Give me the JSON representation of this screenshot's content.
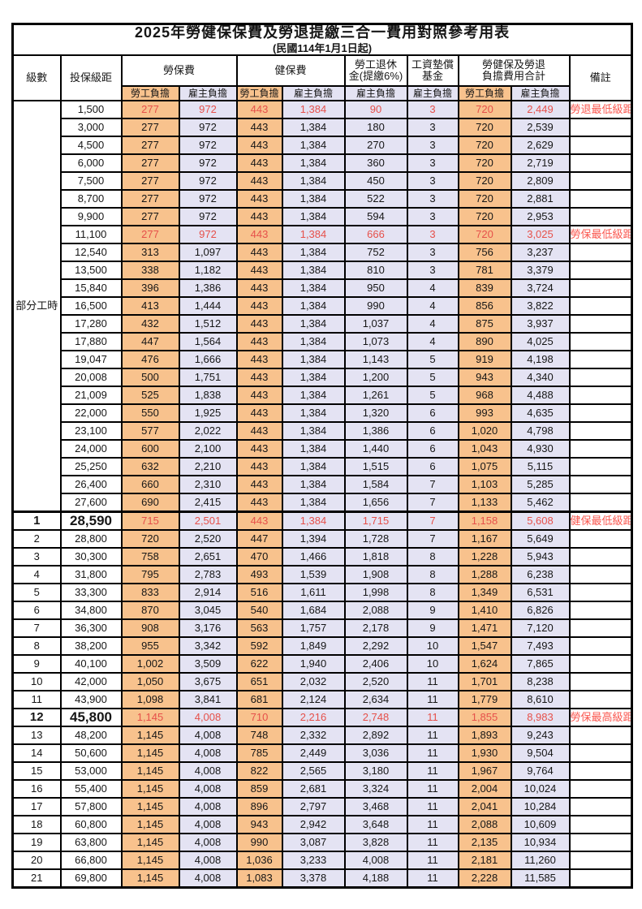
{
  "title": "2025年勞健保保費及勞退提繳三合一費用對照參考用表",
  "subtitle": "(民國114年1月1日起)",
  "header": {
    "level": "級數",
    "bracket": "投保級距",
    "labor_ins": "勞保費",
    "health_ins": "健保費",
    "pension_line1": "勞工退休",
    "pension_line2": "金(提繳6%)",
    "wage_fund_line1": "工資墊償",
    "wage_fund_line2": "基金",
    "total_line1": "勞健保及勞退",
    "total_line2": "負擔費用合計",
    "remarks": "備註",
    "worker": "勞工負擔",
    "employer": "雇主負擔"
  },
  "part_time_label": "部分工時",
  "colors": {
    "worker_bg": "#F8C28D",
    "employer_bg": "#E4E3F3",
    "highlight_red": "#E6504A",
    "note_red": "#FA564E"
  },
  "rows": [
    {
      "level": "",
      "bracket": "1,500",
      "values": [
        "277",
        "972",
        "443",
        "1,384",
        "90",
        "3",
        "720",
        "2,449"
      ],
      "note": "勞退最低級距",
      "red": true,
      "emphasis": false
    },
    {
      "level": "",
      "bracket": "3,000",
      "values": [
        "277",
        "972",
        "443",
        "1,384",
        "180",
        "3",
        "720",
        "2,539"
      ],
      "note": "",
      "red": false,
      "emphasis": false
    },
    {
      "level": "",
      "bracket": "4,500",
      "values": [
        "277",
        "972",
        "443",
        "1,384",
        "270",
        "3",
        "720",
        "2,629"
      ],
      "note": "",
      "red": false,
      "emphasis": false
    },
    {
      "level": "",
      "bracket": "6,000",
      "values": [
        "277",
        "972",
        "443",
        "1,384",
        "360",
        "3",
        "720",
        "2,719"
      ],
      "note": "",
      "red": false,
      "emphasis": false
    },
    {
      "level": "",
      "bracket": "7,500",
      "values": [
        "277",
        "972",
        "443",
        "1,384",
        "450",
        "3",
        "720",
        "2,809"
      ],
      "note": "",
      "red": false,
      "emphasis": false
    },
    {
      "level": "",
      "bracket": "8,700",
      "values": [
        "277",
        "972",
        "443",
        "1,384",
        "522",
        "3",
        "720",
        "2,881"
      ],
      "note": "",
      "red": false,
      "emphasis": false
    },
    {
      "level": "",
      "bracket": "9,900",
      "values": [
        "277",
        "972",
        "443",
        "1,384",
        "594",
        "3",
        "720",
        "2,953"
      ],
      "note": "",
      "red": false,
      "emphasis": false
    },
    {
      "level": "",
      "bracket": "11,100",
      "values": [
        "277",
        "972",
        "443",
        "1,384",
        "666",
        "3",
        "720",
        "3,025"
      ],
      "note": "勞保最低級距",
      "red": true,
      "emphasis": false
    },
    {
      "level": "",
      "bracket": "12,540",
      "values": [
        "313",
        "1,097",
        "443",
        "1,384",
        "752",
        "3",
        "756",
        "3,237"
      ],
      "note": "",
      "red": false,
      "emphasis": false
    },
    {
      "level": "",
      "bracket": "13,500",
      "values": [
        "338",
        "1,182",
        "443",
        "1,384",
        "810",
        "3",
        "781",
        "3,379"
      ],
      "note": "",
      "red": false,
      "emphasis": false
    },
    {
      "level": "",
      "bracket": "15,840",
      "values": [
        "396",
        "1,386",
        "443",
        "1,384",
        "950",
        "4",
        "839",
        "3,724"
      ],
      "note": "",
      "red": false,
      "emphasis": false
    },
    {
      "level": "",
      "bracket": "16,500",
      "values": [
        "413",
        "1,444",
        "443",
        "1,384",
        "990",
        "4",
        "856",
        "3,822"
      ],
      "note": "",
      "red": false,
      "emphasis": false
    },
    {
      "level": "",
      "bracket": "17,280",
      "values": [
        "432",
        "1,512",
        "443",
        "1,384",
        "1,037",
        "4",
        "875",
        "3,937"
      ],
      "note": "",
      "red": false,
      "emphasis": false
    },
    {
      "level": "",
      "bracket": "17,880",
      "values": [
        "447",
        "1,564",
        "443",
        "1,384",
        "1,073",
        "4",
        "890",
        "4,025"
      ],
      "note": "",
      "red": false,
      "emphasis": false
    },
    {
      "level": "",
      "bracket": "19,047",
      "values": [
        "476",
        "1,666",
        "443",
        "1,384",
        "1,143",
        "5",
        "919",
        "4,198"
      ],
      "note": "",
      "red": false,
      "emphasis": false
    },
    {
      "level": "",
      "bracket": "20,008",
      "values": [
        "500",
        "1,751",
        "443",
        "1,384",
        "1,200",
        "5",
        "943",
        "4,340"
      ],
      "note": "",
      "red": false,
      "emphasis": false
    },
    {
      "level": "",
      "bracket": "21,009",
      "values": [
        "525",
        "1,838",
        "443",
        "1,384",
        "1,261",
        "5",
        "968",
        "4,488"
      ],
      "note": "",
      "red": false,
      "emphasis": false
    },
    {
      "level": "",
      "bracket": "22,000",
      "values": [
        "550",
        "1,925",
        "443",
        "1,384",
        "1,320",
        "6",
        "993",
        "4,635"
      ],
      "note": "",
      "red": false,
      "emphasis": false
    },
    {
      "level": "",
      "bracket": "23,100",
      "values": [
        "577",
        "2,022",
        "443",
        "1,384",
        "1,386",
        "6",
        "1,020",
        "4,798"
      ],
      "note": "",
      "red": false,
      "emphasis": false
    },
    {
      "level": "",
      "bracket": "24,000",
      "values": [
        "600",
        "2,100",
        "443",
        "1,384",
        "1,440",
        "6",
        "1,043",
        "4,930"
      ],
      "note": "",
      "red": false,
      "emphasis": false
    },
    {
      "level": "",
      "bracket": "25,250",
      "values": [
        "632",
        "2,210",
        "443",
        "1,384",
        "1,515",
        "6",
        "1,075",
        "5,115"
      ],
      "note": "",
      "red": false,
      "emphasis": false
    },
    {
      "level": "",
      "bracket": "26,400",
      "values": [
        "660",
        "2,310",
        "443",
        "1,384",
        "1,584",
        "7",
        "1,103",
        "5,285"
      ],
      "note": "",
      "red": false,
      "emphasis": false
    },
    {
      "level": "",
      "bracket": "27,600",
      "values": [
        "690",
        "2,415",
        "443",
        "1,384",
        "1,656",
        "7",
        "1,133",
        "5,462"
      ],
      "note": "",
      "red": false,
      "emphasis": false
    },
    {
      "level": "1",
      "bracket": "28,590",
      "values": [
        "715",
        "2,501",
        "443",
        "1,384",
        "1,715",
        "7",
        "1,158",
        "5,608"
      ],
      "note": "健保最低級距",
      "red": true,
      "emphasis": true
    },
    {
      "level": "2",
      "bracket": "28,800",
      "values": [
        "720",
        "2,520",
        "447",
        "1,394",
        "1,728",
        "7",
        "1,167",
        "5,649"
      ],
      "note": "",
      "red": false,
      "emphasis": false
    },
    {
      "level": "3",
      "bracket": "30,300",
      "values": [
        "758",
        "2,651",
        "470",
        "1,466",
        "1,818",
        "8",
        "1,228",
        "5,943"
      ],
      "note": "",
      "red": false,
      "emphasis": false
    },
    {
      "level": "4",
      "bracket": "31,800",
      "values": [
        "795",
        "2,783",
        "493",
        "1,539",
        "1,908",
        "8",
        "1,288",
        "6,238"
      ],
      "note": "",
      "red": false,
      "emphasis": false
    },
    {
      "level": "5",
      "bracket": "33,300",
      "values": [
        "833",
        "2,914",
        "516",
        "1,611",
        "1,998",
        "8",
        "1,349",
        "6,531"
      ],
      "note": "",
      "red": false,
      "emphasis": false
    },
    {
      "level": "6",
      "bracket": "34,800",
      "values": [
        "870",
        "3,045",
        "540",
        "1,684",
        "2,088",
        "9",
        "1,410",
        "6,826"
      ],
      "note": "",
      "red": false,
      "emphasis": false
    },
    {
      "level": "7",
      "bracket": "36,300",
      "values": [
        "908",
        "3,176",
        "563",
        "1,757",
        "2,178",
        "9",
        "1,471",
        "7,120"
      ],
      "note": "",
      "red": false,
      "emphasis": false
    },
    {
      "level": "8",
      "bracket": "38,200",
      "values": [
        "955",
        "3,342",
        "592",
        "1,849",
        "2,292",
        "10",
        "1,547",
        "7,493"
      ],
      "note": "",
      "red": false,
      "emphasis": false
    },
    {
      "level": "9",
      "bracket": "40,100",
      "values": [
        "1,002",
        "3,509",
        "622",
        "1,940",
        "2,406",
        "10",
        "1,624",
        "7,865"
      ],
      "note": "",
      "red": false,
      "emphasis": false
    },
    {
      "level": "10",
      "bracket": "42,000",
      "values": [
        "1,050",
        "3,675",
        "651",
        "2,032",
        "2,520",
        "11",
        "1,701",
        "8,238"
      ],
      "note": "",
      "red": false,
      "emphasis": false
    },
    {
      "level": "11",
      "bracket": "43,900",
      "values": [
        "1,098",
        "3,841",
        "681",
        "2,124",
        "2,634",
        "11",
        "1,779",
        "8,610"
      ],
      "note": "",
      "red": false,
      "emphasis": false
    },
    {
      "level": "12",
      "bracket": "45,800",
      "values": [
        "1,145",
        "4,008",
        "710",
        "2,216",
        "2,748",
        "11",
        "1,855",
        "8,983"
      ],
      "note": "勞保最高級距",
      "red": true,
      "emphasis": true
    },
    {
      "level": "13",
      "bracket": "48,200",
      "values": [
        "1,145",
        "4,008",
        "748",
        "2,332",
        "2,892",
        "11",
        "1,893",
        "9,243"
      ],
      "note": "",
      "red": false,
      "emphasis": false
    },
    {
      "level": "14",
      "bracket": "50,600",
      "values": [
        "1,145",
        "4,008",
        "785",
        "2,449",
        "3,036",
        "11",
        "1,930",
        "9,504"
      ],
      "note": "",
      "red": false,
      "emphasis": false
    },
    {
      "level": "15",
      "bracket": "53,000",
      "values": [
        "1,145",
        "4,008",
        "822",
        "2,565",
        "3,180",
        "11",
        "1,967",
        "9,764"
      ],
      "note": "",
      "red": false,
      "emphasis": false
    },
    {
      "level": "16",
      "bracket": "55,400",
      "values": [
        "1,145",
        "4,008",
        "859",
        "2,681",
        "3,324",
        "11",
        "2,004",
        "10,024"
      ],
      "note": "",
      "red": false,
      "emphasis": false
    },
    {
      "level": "17",
      "bracket": "57,800",
      "values": [
        "1,145",
        "4,008",
        "896",
        "2,797",
        "3,468",
        "11",
        "2,041",
        "10,284"
      ],
      "note": "",
      "red": false,
      "emphasis": false
    },
    {
      "level": "18",
      "bracket": "60,800",
      "values": [
        "1,145",
        "4,008",
        "943",
        "2,942",
        "3,648",
        "11",
        "2,088",
        "10,609"
      ],
      "note": "",
      "red": false,
      "emphasis": false
    },
    {
      "level": "19",
      "bracket": "63,800",
      "values": [
        "1,145",
        "4,008",
        "990",
        "3,087",
        "3,828",
        "11",
        "2,135",
        "10,934"
      ],
      "note": "",
      "red": false,
      "emphasis": false
    },
    {
      "level": "20",
      "bracket": "66,800",
      "values": [
        "1,145",
        "4,008",
        "1,036",
        "3,233",
        "4,008",
        "11",
        "2,181",
        "11,260"
      ],
      "note": "",
      "red": false,
      "emphasis": false
    },
    {
      "level": "21",
      "bracket": "69,800",
      "values": [
        "1,145",
        "4,008",
        "1,083",
        "3,378",
        "4,188",
        "11",
        "2,228",
        "11,585"
      ],
      "note": "",
      "red": false,
      "emphasis": false
    }
  ]
}
